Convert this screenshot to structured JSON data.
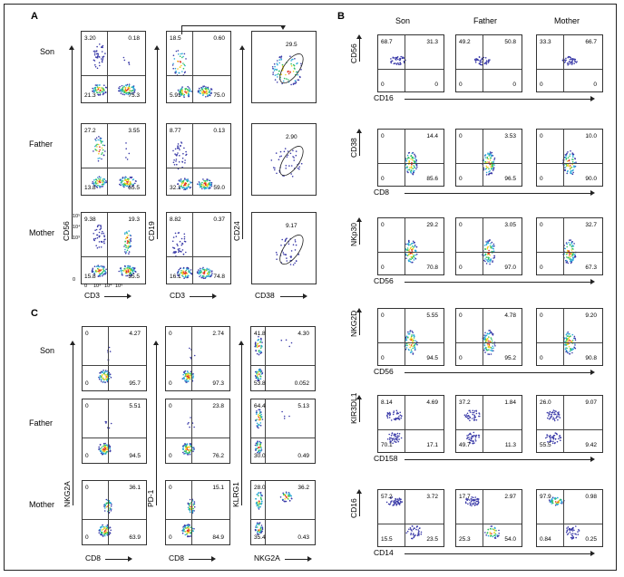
{
  "panels": {
    "A": {
      "label": "A",
      "rows": [
        "Son",
        "Father",
        "Mother"
      ],
      "columns": [
        {
          "xlabel": "CD3",
          "ylabel": "CD56",
          "quads": [
            [
              "3.20",
              "0.18",
              "21.3",
              "75.3"
            ],
            [
              "27.2",
              "3.55",
              "13.8",
              "55.5"
            ],
            [
              "9.38",
              "19.3",
              "15.8",
              "55.5"
            ]
          ]
        },
        {
          "xlabel": "CD3",
          "ylabel": "CD19",
          "quads": [
            [
              "18.5",
              "0.60",
              "5.91",
              "75.0"
            ],
            [
              "8.77",
              "0.13",
              "32.1",
              "59.0"
            ],
            [
              "8.82",
              "0.37",
              "16.1",
              "74.8"
            ]
          ]
        },
        {
          "xlabel": "CD38",
          "ylabel": "CD24",
          "gate": [
            "29.5",
            "2.90",
            "9.17"
          ]
        }
      ],
      "ticks_y": [
        "10⁵",
        "10⁴",
        "10³",
        "0"
      ],
      "ticks_x": [
        "0",
        "10³",
        "10⁴",
        "10⁵"
      ]
    },
    "B": {
      "label": "B",
      "cols": [
        "Son",
        "Father",
        "Mother"
      ],
      "rows": [
        {
          "ylabel": "CD56",
          "xlabel": "CD16",
          "quads": [
            [
              "68.7",
              "31.3",
              "0",
              "0"
            ],
            [
              "49.2",
              "50.8",
              "0",
              "0"
            ],
            [
              "33.3",
              "66.7",
              "0",
              "0"
            ]
          ]
        },
        {
          "ylabel": "CD38",
          "xlabel": "CD8",
          "quads": [
            [
              "0",
              "14.4",
              "0",
              "85.6"
            ],
            [
              "0",
              "3.53",
              "0",
              "96.5"
            ],
            [
              "0",
              "10.0",
              "0",
              "90.0"
            ]
          ]
        },
        {
          "ylabel": "NKp30",
          "xlabel": "CD56",
          "quads": [
            [
              "0",
              "29.2",
              "0",
              "70.8"
            ],
            [
              "0",
              "3.05",
              "0",
              "97.0"
            ],
            [
              "0",
              "32.7",
              "0",
              "67.3"
            ]
          ]
        },
        {
          "ylabel": "NKG2D",
          "xlabel": "CD56",
          "quads": [
            [
              "0",
              "5.55",
              "0",
              "94.5"
            ],
            [
              "0",
              "4.78",
              "0",
              "95.2"
            ],
            [
              "0",
              "9.20",
              "0",
              "90.8"
            ]
          ]
        },
        {
          "ylabel": "KIR3DL1",
          "xlabel": "CD158",
          "quads": [
            [
              "8.14",
              "4.69",
              "70.1",
              "17.1"
            ],
            [
              "37.2",
              "1.84",
              "49.7",
              "11.3"
            ],
            [
              "26.0",
              "9.07",
              "55.5",
              "9.42"
            ]
          ]
        },
        {
          "ylabel": "CD16",
          "xlabel": "CD14",
          "quads": [
            [
              "57.2",
              "3.72",
              "15.5",
              "23.5"
            ],
            [
              "17.7",
              "2.97",
              "25.3",
              "54.0"
            ],
            [
              "97.9",
              "0.98",
              "0.84",
              "0.25"
            ]
          ]
        }
      ]
    },
    "C": {
      "label": "C",
      "rows": [
        "Son",
        "Father",
        "Mother"
      ],
      "columns": [
        {
          "xlabel": "CD8",
          "ylabel": "NKG2A",
          "quads": [
            [
              "0",
              "4.27",
              "0",
              "95.7"
            ],
            [
              "0",
              "5.51",
              "0",
              "94.5"
            ],
            [
              "0",
              "36.1",
              "0",
              "63.9"
            ]
          ]
        },
        {
          "xlabel": "CD8",
          "ylabel": "PD-1",
          "quads": [
            [
              "0",
              "2.74",
              "0",
              "97.3"
            ],
            [
              "0",
              "23.8",
              "0",
              "76.2"
            ],
            [
              "0",
              "15.1",
              "0",
              "84.9"
            ]
          ]
        },
        {
          "xlabel": "NKG2A",
          "ylabel": "KLRG1",
          "quads": [
            [
              "41.8",
              "4.30",
              "53.8",
              "0.052"
            ],
            [
              "64.4",
              "5.13",
              "30.0",
              "0.49"
            ],
            [
              "28.0",
              "36.2",
              "35.4",
              "0.43"
            ]
          ]
        }
      ]
    }
  }
}
